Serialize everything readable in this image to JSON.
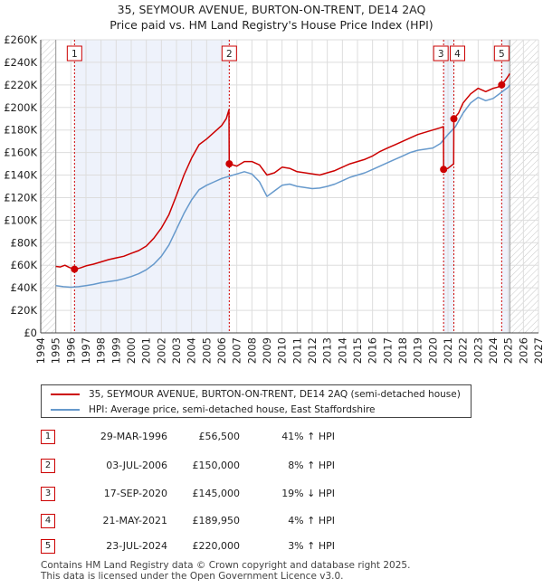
{
  "title_line1": "35, SEYMOUR AVENUE, BURTON-ON-TRENT, DE14 2AQ",
  "title_line2": "Price paid vs. HM Land Registry's House Price Index (HPI)",
  "chart_data": {
    "type": "line",
    "title": "35, SEYMOUR AVENUE, BURTON-ON-TRENT, DE14 2AQ — Price paid vs. HM Land Registry's House Price Index (HPI)",
    "xlim": [
      1994,
      2027
    ],
    "ylim": [
      0,
      260000
    ],
    "x_ticks": [
      1994,
      1995,
      1996,
      1997,
      1998,
      1999,
      2000,
      2001,
      2002,
      2003,
      2004,
      2005,
      2006,
      2007,
      2008,
      2009,
      2010,
      2011,
      2012,
      2013,
      2014,
      2015,
      2016,
      2017,
      2018,
      2019,
      2020,
      2021,
      2022,
      2023,
      2024,
      2025,
      2026,
      2027
    ],
    "y_ticks": [
      {
        "value": 0,
        "label": "£0"
      },
      {
        "value": 20000,
        "label": "£20K"
      },
      {
        "value": 40000,
        "label": "£40K"
      },
      {
        "value": 60000,
        "label": "£60K"
      },
      {
        "value": 80000,
        "label": "£80K"
      },
      {
        "value": 100000,
        "label": "£100K"
      },
      {
        "value": 120000,
        "label": "£120K"
      },
      {
        "value": 140000,
        "label": "£140K"
      },
      {
        "value": 160000,
        "label": "£160K"
      },
      {
        "value": 180000,
        "label": "£180K"
      },
      {
        "value": 200000,
        "label": "£200K"
      },
      {
        "value": 220000,
        "label": "£220K"
      },
      {
        "value": 240000,
        "label": "£240K"
      },
      {
        "value": 260000,
        "label": "£260K"
      }
    ],
    "grid": true,
    "data_start": 1995.0,
    "forecast_start": 2025.1,
    "series": [
      {
        "name": "35, SEYMOUR AVENUE, BURTON-ON-TRENT, DE14 2AQ (semi-detached house)",
        "color": "#cc0000",
        "points": [
          [
            1995.0,
            59000
          ],
          [
            1995.3,
            58500
          ],
          [
            1995.6,
            60000
          ],
          [
            1995.9,
            58000
          ],
          [
            1996.24,
            56500
          ],
          [
            1996.6,
            57500
          ],
          [
            1997.0,
            59500
          ],
          [
            1997.5,
            61000
          ],
          [
            1998.0,
            63000
          ],
          [
            1998.5,
            65000
          ],
          [
            1999.0,
            66500
          ],
          [
            1999.5,
            68000
          ],
          [
            2000.0,
            70500
          ],
          [
            2000.5,
            73000
          ],
          [
            2001.0,
            77000
          ],
          [
            2001.5,
            84000
          ],
          [
            2002.0,
            93000
          ],
          [
            2002.5,
            105000
          ],
          [
            2003.0,
            122000
          ],
          [
            2003.5,
            140000
          ],
          [
            2004.0,
            155000
          ],
          [
            2004.5,
            167000
          ],
          [
            2005.0,
            172000
          ],
          [
            2005.5,
            178000
          ],
          [
            2006.0,
            184000
          ],
          [
            2006.3,
            190000
          ],
          [
            2006.48,
            198000
          ],
          [
            2006.5,
            150000
          ],
          [
            2007.0,
            148000
          ],
          [
            2007.5,
            152000
          ],
          [
            2008.0,
            152000
          ],
          [
            2008.5,
            149000
          ],
          [
            2009.0,
            140000
          ],
          [
            2009.5,
            142000
          ],
          [
            2010.0,
            147000
          ],
          [
            2010.5,
            146000
          ],
          [
            2011.0,
            143000
          ],
          [
            2011.5,
            142000
          ],
          [
            2012.0,
            141000
          ],
          [
            2012.5,
            140000
          ],
          [
            2013.0,
            142000
          ],
          [
            2013.5,
            144000
          ],
          [
            2014.0,
            147000
          ],
          [
            2014.5,
            150000
          ],
          [
            2015.0,
            152000
          ],
          [
            2015.5,
            154000
          ],
          [
            2016.0,
            157000
          ],
          [
            2016.5,
            161000
          ],
          [
            2017.0,
            164000
          ],
          [
            2017.5,
            167000
          ],
          [
            2018.0,
            170000
          ],
          [
            2018.5,
            173000
          ],
          [
            2019.0,
            176000
          ],
          [
            2019.5,
            178000
          ],
          [
            2020.0,
            180000
          ],
          [
            2020.5,
            182000
          ],
          [
            2020.7,
            183000
          ],
          [
            2020.71,
            145000
          ],
          [
            2021.0,
            146000
          ],
          [
            2021.38,
            150000
          ],
          [
            2021.39,
            189950
          ],
          [
            2021.7,
            195000
          ],
          [
            2022.0,
            204000
          ],
          [
            2022.5,
            212000
          ],
          [
            2023.0,
            217000
          ],
          [
            2023.5,
            214000
          ],
          [
            2024.0,
            217000
          ],
          [
            2024.3,
            218000
          ],
          [
            2024.56,
            220000
          ],
          [
            2024.8,
            224000
          ],
          [
            2025.0,
            228000
          ],
          [
            2025.1,
            230000
          ]
        ]
      },
      {
        "name": "HPI: Average price, semi-detached house, East Staffordshire",
        "color": "#6699cc",
        "points": [
          [
            1995.0,
            42000
          ],
          [
            1995.5,
            41000
          ],
          [
            1996.0,
            40500
          ],
          [
            1996.5,
            41000
          ],
          [
            1997.0,
            42000
          ],
          [
            1997.5,
            43000
          ],
          [
            1998.0,
            44500
          ],
          [
            1998.5,
            45500
          ],
          [
            1999.0,
            46500
          ],
          [
            1999.5,
            48000
          ],
          [
            2000.0,
            50000
          ],
          [
            2000.5,
            52500
          ],
          [
            2001.0,
            56000
          ],
          [
            2001.5,
            61000
          ],
          [
            2002.0,
            68000
          ],
          [
            2002.5,
            78000
          ],
          [
            2003.0,
            92000
          ],
          [
            2003.5,
            106000
          ],
          [
            2004.0,
            118000
          ],
          [
            2004.5,
            127000
          ],
          [
            2005.0,
            131000
          ],
          [
            2005.5,
            134000
          ],
          [
            2006.0,
            137000
          ],
          [
            2006.5,
            139000
          ],
          [
            2007.0,
            141000
          ],
          [
            2007.5,
            143000
          ],
          [
            2008.0,
            141000
          ],
          [
            2008.5,
            134000
          ],
          [
            2009.0,
            121000
          ],
          [
            2009.5,
            126000
          ],
          [
            2010.0,
            131000
          ],
          [
            2010.5,
            132000
          ],
          [
            2011.0,
            130000
          ],
          [
            2011.5,
            129000
          ],
          [
            2012.0,
            128000
          ],
          [
            2012.5,
            128500
          ],
          [
            2013.0,
            130000
          ],
          [
            2013.5,
            132000
          ],
          [
            2014.0,
            135000
          ],
          [
            2014.5,
            138000
          ],
          [
            2015.0,
            140000
          ],
          [
            2015.5,
            142000
          ],
          [
            2016.0,
            145000
          ],
          [
            2016.5,
            148000
          ],
          [
            2017.0,
            151000
          ],
          [
            2017.5,
            154000
          ],
          [
            2018.0,
            157000
          ],
          [
            2018.5,
            160000
          ],
          [
            2019.0,
            162000
          ],
          [
            2019.5,
            163000
          ],
          [
            2020.0,
            164000
          ],
          [
            2020.5,
            168000
          ],
          [
            2021.0,
            176000
          ],
          [
            2021.5,
            183000
          ],
          [
            2022.0,
            195000
          ],
          [
            2022.5,
            204000
          ],
          [
            2023.0,
            209000
          ],
          [
            2023.5,
            206000
          ],
          [
            2024.0,
            208000
          ],
          [
            2024.5,
            213000
          ],
          [
            2025.0,
            218000
          ],
          [
            2025.1,
            220000
          ]
        ]
      }
    ],
    "sales": [
      {
        "label": "1",
        "x": 1996.24,
        "price": 56500
      },
      {
        "label": "2",
        "x": 2006.5,
        "price": 150000
      },
      {
        "label": "3",
        "x": 2020.71,
        "price": 145000
      },
      {
        "label": "4",
        "x": 2021.39,
        "price": 189950
      },
      {
        "label": "5",
        "x": 2024.56,
        "price": 220000
      }
    ]
  },
  "legend": {
    "property_label": "35, SEYMOUR AVENUE, BURTON-ON-TRENT, DE14 2AQ (semi-detached house)",
    "hpi_label": "HPI: Average price, semi-detached house, East Staffordshire",
    "property_color": "#cc0000",
    "hpi_color": "#6699cc"
  },
  "transactions": [
    {
      "num": "1",
      "date": "29-MAR-1996",
      "price": "£56,500",
      "hpi": "41% ↑ HPI"
    },
    {
      "num": "2",
      "date": "03-JUL-2006",
      "price": "£150,000",
      "hpi": "8% ↑ HPI"
    },
    {
      "num": "3",
      "date": "17-SEP-2020",
      "price": "£145,000",
      "hpi": "19% ↓ HPI"
    },
    {
      "num": "4",
      "date": "21-MAY-2021",
      "price": "£189,950",
      "hpi": "4% ↑ HPI"
    },
    {
      "num": "5",
      "date": "23-JUL-2024",
      "price": "£220,000",
      "hpi": "3% ↑ HPI"
    }
  ],
  "footer": {
    "line1": "Contains HM Land Registry data © Crown copyright and database right 2025.",
    "line2": "This data is licensed under the Open Government Licence v3.0."
  }
}
